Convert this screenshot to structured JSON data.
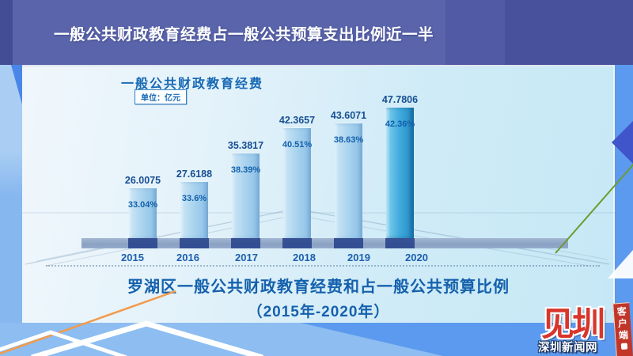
{
  "banner": {
    "title": "一般公共财政教育经费占一般公共预算支出比例近一半"
  },
  "panel": {
    "chart_title": "一般公共财政教育经费",
    "unit_label": "单位：亿元",
    "caption_line1": "罗湖区一般公共财政教育经费和占一般公共预算比例",
    "caption_line2": "（2015年-2020年）"
  },
  "chart_data": {
    "type": "bar",
    "title": "一般公共财政教育经费",
    "unit": "亿元",
    "categories": [
      "2015",
      "2016",
      "2017",
      "2018",
      "2019",
      "2020"
    ],
    "series": [
      {
        "name": "一般公共财政教育经费（亿元）",
        "values": [
          26.0075,
          27.6188,
          35.3817,
          42.3657,
          43.6071,
          47.7806
        ],
        "labels": [
          "26.0075",
          "27.6188",
          "35.3817",
          "42.3657",
          "43.6071",
          "47.7806"
        ]
      },
      {
        "name": "占一般公共预算比例",
        "values": [
          33.04,
          33.6,
          38.39,
          40.51,
          38.63,
          42.36
        ],
        "labels": [
          "33.04%",
          "33.6%",
          "38.39%",
          "40.51%",
          "38.63%",
          "42.36%"
        ]
      }
    ],
    "highlight_category": "2020",
    "caption": "罗湖区一般公共财政教育经费和占一般公共预算比例（2015年-2020年）",
    "legend": "none",
    "grid": "off",
    "value_labels_position": "above bars",
    "percent_labels_position": "inside bars near top"
  },
  "logo": {
    "mark_text": "见圳",
    "site_name": "深圳新闻网",
    "ribbon_text": "客户端"
  },
  "colors": {
    "banner_bg": "#5a64ab",
    "background_blue": "#5b9aee",
    "panel_bg": "#d9eff8",
    "bar_normal": "#a9d3ee",
    "bar_highlight": "#3fa9dc",
    "label_blue": "#1561ad",
    "logo_red": "#d8352c",
    "accent_orange": "#f29b4b",
    "accent_green": "#6d9b2d"
  }
}
